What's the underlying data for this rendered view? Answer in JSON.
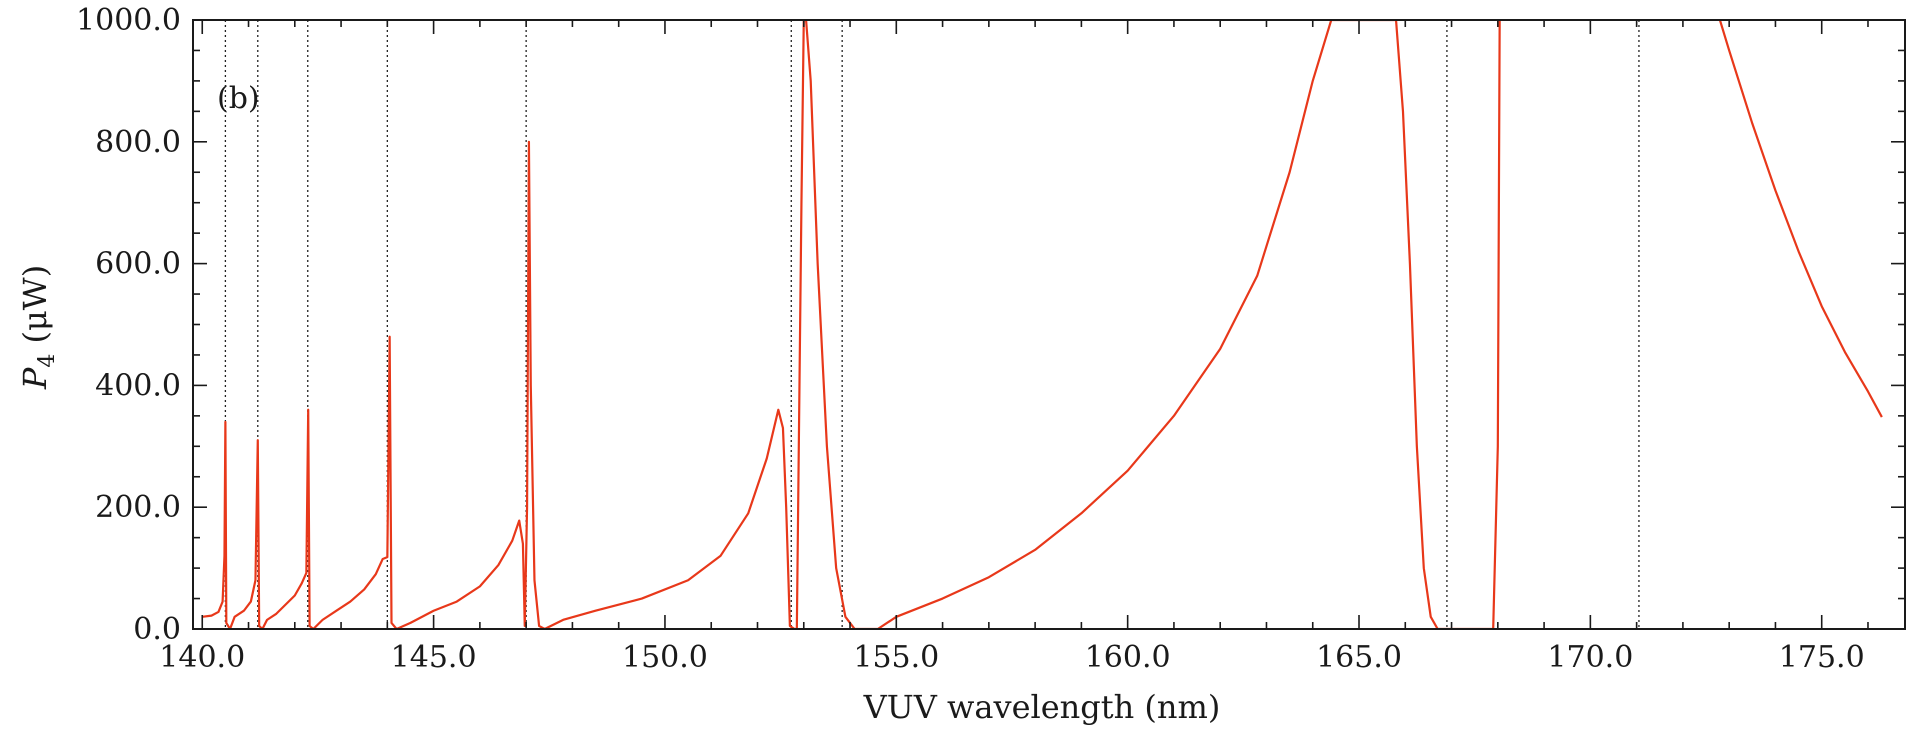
{
  "chart_data": {
    "type": "line",
    "panel_label": "(b)",
    "xlabel": "VUV wavelength  (nm)",
    "ylabel_var": "P",
    "ylabel_sub": "4",
    "ylabel_unit": " (μW)",
    "xlim": [
      139.8,
      176.8
    ],
    "ylim": [
      0,
      1000
    ],
    "x_ticks": [
      {
        "value": 140,
        "label": "140.0"
      },
      {
        "value": 145,
        "label": "145.0"
      },
      {
        "value": 150,
        "label": "150.0"
      },
      {
        "value": 155,
        "label": "155.0"
      },
      {
        "value": 160,
        "label": "160.0"
      },
      {
        "value": 165,
        "label": "165.0"
      },
      {
        "value": 170,
        "label": "170.0"
      },
      {
        "value": 175,
        "label": "175.0"
      }
    ],
    "y_ticks": [
      {
        "value": 0,
        "label": "0.0"
      },
      {
        "value": 200,
        "label": "200.0"
      },
      {
        "value": 400,
        "label": "400.0"
      },
      {
        "value": 600,
        "label": "600.0"
      },
      {
        "value": 800,
        "label": "800.0"
      },
      {
        "value": 1000,
        "label": "1000.0"
      }
    ],
    "x_minor_step": 1,
    "y_minor_step": 50,
    "vertical_reference_lines": [
      140.5,
      141.2,
      142.28,
      144.0,
      147.0,
      152.73,
      153.83,
      166.9,
      171.05
    ],
    "series": [
      {
        "color": "#e8381a",
        "points": [
          [
            140.0,
            20
          ],
          [
            140.2,
            22
          ],
          [
            140.35,
            28
          ],
          [
            140.44,
            45
          ],
          [
            140.48,
            120
          ],
          [
            140.5,
            340
          ],
          [
            140.52,
            10
          ],
          [
            140.6,
            0
          ],
          [
            140.7,
            20
          ],
          [
            140.9,
            30
          ],
          [
            141.05,
            45
          ],
          [
            141.15,
            80
          ],
          [
            141.2,
            310
          ],
          [
            141.23,
            5
          ],
          [
            141.3,
            0
          ],
          [
            141.4,
            15
          ],
          [
            141.6,
            25
          ],
          [
            141.8,
            40
          ],
          [
            142.0,
            55
          ],
          [
            142.15,
            75
          ],
          [
            142.25,
            92
          ],
          [
            142.29,
            360
          ],
          [
            142.32,
            5
          ],
          [
            142.4,
            0
          ],
          [
            142.6,
            15
          ],
          [
            142.9,
            30
          ],
          [
            143.2,
            45
          ],
          [
            143.5,
            65
          ],
          [
            143.75,
            90
          ],
          [
            143.9,
            115
          ],
          [
            144.0,
            118
          ],
          [
            144.05,
            480
          ],
          [
            144.09,
            10
          ],
          [
            144.2,
            0
          ],
          [
            144.5,
            10
          ],
          [
            145.0,
            30
          ],
          [
            145.5,
            45
          ],
          [
            146.0,
            70
          ],
          [
            146.4,
            105
          ],
          [
            146.7,
            145
          ],
          [
            146.85,
            178
          ],
          [
            146.93,
            140
          ],
          [
            146.97,
            5
          ],
          [
            147.02,
            200
          ],
          [
            147.06,
            800
          ],
          [
            147.1,
            400
          ],
          [
            147.18,
            80
          ],
          [
            147.28,
            5
          ],
          [
            147.4,
            0
          ],
          [
            147.8,
            15
          ],
          [
            148.5,
            30
          ],
          [
            149.5,
            50
          ],
          [
            150.5,
            80
          ],
          [
            151.2,
            120
          ],
          [
            151.8,
            190
          ],
          [
            152.2,
            280
          ],
          [
            152.45,
            360
          ],
          [
            152.55,
            330
          ],
          [
            152.62,
            200
          ],
          [
            152.7,
            5
          ],
          [
            152.8,
            0
          ],
          [
            152.85,
            0
          ],
          [
            152.95,
            700
          ],
          [
            153.0,
            1000
          ],
          [
            153.05,
            1000
          ],
          [
            153.15,
            900
          ],
          [
            153.3,
            600
          ],
          [
            153.5,
            300
          ],
          [
            153.7,
            100
          ],
          [
            153.9,
            20
          ],
          [
            154.1,
            0
          ],
          [
            154.6,
            0
          ],
          [
            155.0,
            20
          ],
          [
            156.0,
            50
          ],
          [
            157.0,
            85
          ],
          [
            158.0,
            130
          ],
          [
            159.0,
            190
          ],
          [
            160.0,
            260
          ],
          [
            161.0,
            350
          ],
          [
            162.0,
            460
          ],
          [
            162.8,
            580
          ],
          [
            163.5,
            750
          ],
          [
            164.0,
            900
          ],
          [
            164.4,
            1000
          ],
          [
            165.8,
            1000
          ],
          [
            165.95,
            850
          ],
          [
            166.1,
            600
          ],
          [
            166.25,
            300
          ],
          [
            166.4,
            100
          ],
          [
            166.55,
            20
          ],
          [
            166.7,
            0
          ],
          [
            167.9,
            0
          ],
          [
            168.0,
            300
          ],
          [
            168.04,
            1000
          ]
        ]
      },
      {
        "color": "#e8381a",
        "points": [
          [
            172.8,
            1000
          ],
          [
            173.0,
            950
          ],
          [
            173.5,
            830
          ],
          [
            174.0,
            720
          ],
          [
            174.5,
            620
          ],
          [
            175.0,
            530
          ],
          [
            175.5,
            455
          ],
          [
            176.0,
            390
          ],
          [
            176.3,
            348
          ]
        ]
      }
    ]
  }
}
